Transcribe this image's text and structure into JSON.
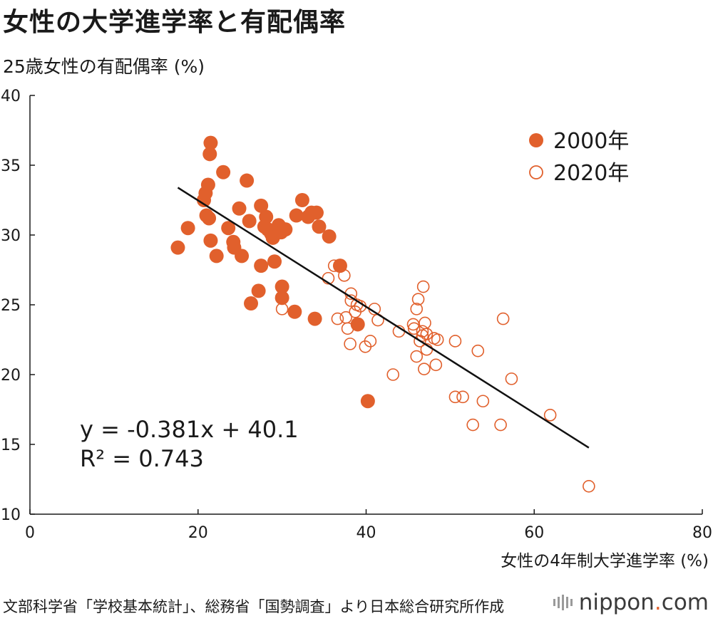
{
  "title": "女性の大学進学率と有配偶率",
  "source": "文部科学省「学校基本統計」、総務省「国勢調査」より日本総合研究所作成",
  "brand": {
    "main": "nippon",
    "dot": ".",
    "suffix": "com"
  },
  "colors": {
    "accent": "#e1602c",
    "line": "#111111",
    "axis": "#1a1a1a"
  },
  "chart_data": {
    "type": "scatter",
    "title": "女性の大学進学率と有配偶率",
    "xlabel": "女性の4年制大学進学率 (%)",
    "ylabel": "25歳女性の有配偶率 (%)",
    "xlim": [
      0,
      80
    ],
    "ylim": [
      10,
      40
    ],
    "xticks": [
      "0",
      "20",
      "40",
      "60",
      "80"
    ],
    "yticks": [
      "10",
      "15",
      "20",
      "25",
      "30",
      "35",
      "40"
    ],
    "grid": false,
    "legend_position": "top-right",
    "equation": "y = -0.381x + 40.1",
    "r_squared": "R² = 0.743",
    "trendline": {
      "slope": -0.381,
      "intercept": 40.1,
      "x_range": [
        17.6,
        66.5
      ]
    },
    "series": [
      {
        "name": "2000年",
        "marker": "filled",
        "points": [
          [
            17.6,
            29.1
          ],
          [
            18.8,
            30.5
          ],
          [
            20.7,
            32.5
          ],
          [
            20.9,
            33.0
          ],
          [
            21.0,
            31.4
          ],
          [
            21.2,
            33.6
          ],
          [
            21.3,
            31.2
          ],
          [
            21.4,
            35.8
          ],
          [
            21.5,
            36.6
          ],
          [
            21.5,
            29.6
          ],
          [
            22.2,
            28.5
          ],
          [
            23.0,
            34.5
          ],
          [
            23.6,
            30.5
          ],
          [
            24.2,
            29.5
          ],
          [
            24.3,
            29.1
          ],
          [
            24.9,
            31.9
          ],
          [
            25.2,
            28.5
          ],
          [
            25.8,
            33.9
          ],
          [
            26.1,
            31.0
          ],
          [
            26.3,
            25.1
          ],
          [
            27.2,
            26.0
          ],
          [
            27.5,
            32.1
          ],
          [
            27.5,
            27.8
          ],
          [
            27.9,
            30.6
          ],
          [
            28.1,
            31.3
          ],
          [
            28.3,
            30.4
          ],
          [
            28.7,
            30.1
          ],
          [
            28.9,
            29.8
          ],
          [
            29.1,
            28.1
          ],
          [
            29.6,
            30.7
          ],
          [
            29.9,
            30.2
          ],
          [
            30.0,
            26.3
          ],
          [
            30.0,
            25.5
          ],
          [
            30.4,
            30.4
          ],
          [
            31.5,
            24.5
          ],
          [
            31.7,
            31.4
          ],
          [
            32.4,
            32.5
          ],
          [
            33.1,
            31.3
          ],
          [
            33.5,
            31.6
          ],
          [
            34.1,
            31.6
          ],
          [
            34.4,
            30.6
          ],
          [
            33.9,
            24.0
          ],
          [
            35.6,
            29.9
          ],
          [
            36.9,
            27.8
          ],
          [
            39.0,
            23.6
          ],
          [
            40.2,
            18.1
          ]
        ]
      },
      {
        "name": "2020年",
        "marker": "open",
        "points": [
          [
            30.0,
            24.7
          ],
          [
            35.5,
            26.9
          ],
          [
            36.2,
            27.8
          ],
          [
            36.6,
            24.0
          ],
          [
            37.4,
            27.1
          ],
          [
            37.6,
            24.1
          ],
          [
            37.8,
            23.3
          ],
          [
            38.1,
            22.2
          ],
          [
            38.2,
            25.3
          ],
          [
            38.2,
            25.8
          ],
          [
            38.7,
            24.5
          ],
          [
            38.9,
            25.0
          ],
          [
            39.3,
            24.9
          ],
          [
            39.9,
            22.0
          ],
          [
            40.5,
            22.4
          ],
          [
            41.0,
            24.7
          ],
          [
            41.4,
            23.9
          ],
          [
            43.9,
            23.1
          ],
          [
            43.2,
            20.0
          ],
          [
            45.6,
            23.6
          ],
          [
            45.7,
            23.3
          ],
          [
            46.0,
            24.7
          ],
          [
            46.0,
            21.3
          ],
          [
            46.2,
            25.4
          ],
          [
            46.4,
            22.4
          ],
          [
            46.7,
            23.1
          ],
          [
            46.7,
            22.8
          ],
          [
            46.8,
            26.3
          ],
          [
            46.9,
            20.4
          ],
          [
            47.0,
            23.7
          ],
          [
            47.2,
            21.8
          ],
          [
            47.2,
            22.9
          ],
          [
            48.1,
            22.6
          ],
          [
            48.3,
            20.7
          ],
          [
            48.5,
            22.5
          ],
          [
            50.6,
            22.4
          ],
          [
            50.6,
            18.4
          ],
          [
            51.5,
            18.4
          ],
          [
            52.7,
            16.4
          ],
          [
            53.3,
            21.7
          ],
          [
            53.9,
            18.1
          ],
          [
            56.0,
            16.4
          ],
          [
            56.3,
            24.0
          ],
          [
            57.3,
            19.7
          ],
          [
            61.9,
            17.1
          ],
          [
            66.5,
            12.0
          ]
        ]
      }
    ]
  }
}
